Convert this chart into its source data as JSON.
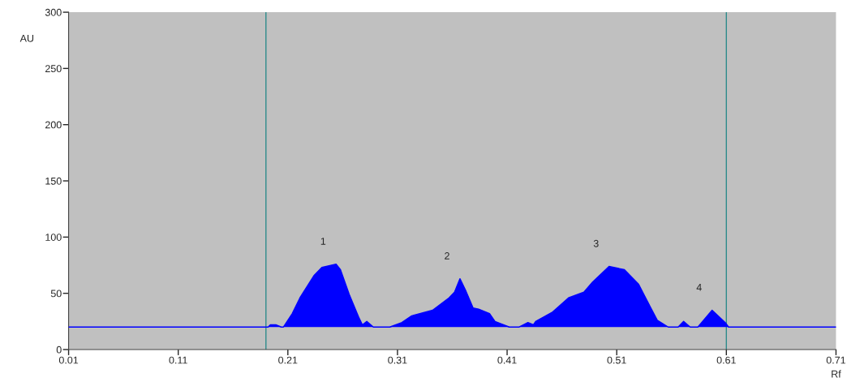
{
  "chart_data": {
    "type": "area",
    "ylabel": "AU",
    "xlabel": "Rf",
    "xlim": [
      0.01,
      0.71
    ],
    "xticks": [
      0.01,
      0.11,
      0.21,
      0.31,
      0.41,
      0.51,
      0.61,
      0.71
    ],
    "ylim": [
      0,
      300
    ],
    "yticks": [
      0,
      50,
      100,
      150,
      200,
      250,
      300
    ],
    "series": [
      {
        "color": "#0000ff",
        "x": [
          0.01,
          0.192,
          0.194,
          0.199,
          0.204,
          0.206,
          0.214,
          0.221,
          0.234,
          0.241,
          0.254,
          0.258,
          0.266,
          0.275,
          0.278,
          0.282,
          0.288,
          0.303,
          0.314,
          0.323,
          0.342,
          0.357,
          0.362,
          0.367,
          0.372,
          0.379,
          0.384,
          0.394,
          0.399,
          0.412,
          0.421,
          0.429,
          0.434,
          0.436,
          0.451,
          0.466,
          0.48,
          0.488,
          0.503,
          0.517,
          0.53,
          0.54,
          0.547,
          0.557,
          0.566,
          0.571,
          0.577,
          0.584,
          0.597,
          0.609,
          0.612,
          0.71
        ],
        "values": [
          20,
          20,
          22,
          22,
          20,
          20,
          32,
          46,
          66,
          73,
          76,
          71,
          49,
          28,
          22,
          25,
          20,
          20,
          24,
          30,
          35,
          46,
          51,
          63,
          53,
          37,
          36,
          32,
          25,
          20,
          20,
          24,
          22,
          25,
          33,
          46,
          51,
          60,
          74,
          71,
          58,
          39,
          26,
          20,
          20,
          25,
          20,
          20,
          35,
          24,
          20,
          20
        ]
      }
    ],
    "ref_lines": [
      {
        "axis": "x",
        "value": 0.19,
        "color": "#2e8b8b"
      },
      {
        "axis": "x",
        "value": 0.61,
        "color": "#2e8b8b"
      }
    ],
    "annotations": [
      {
        "text": "1",
        "x": 0.254,
        "y": 76
      },
      {
        "text": "2",
        "x": 0.367,
        "y": 63
      },
      {
        "text": "3",
        "x": 0.503,
        "y": 74
      },
      {
        "text": "4",
        "x": 0.597,
        "y": 35
      }
    ],
    "grid": false,
    "legend": false
  }
}
